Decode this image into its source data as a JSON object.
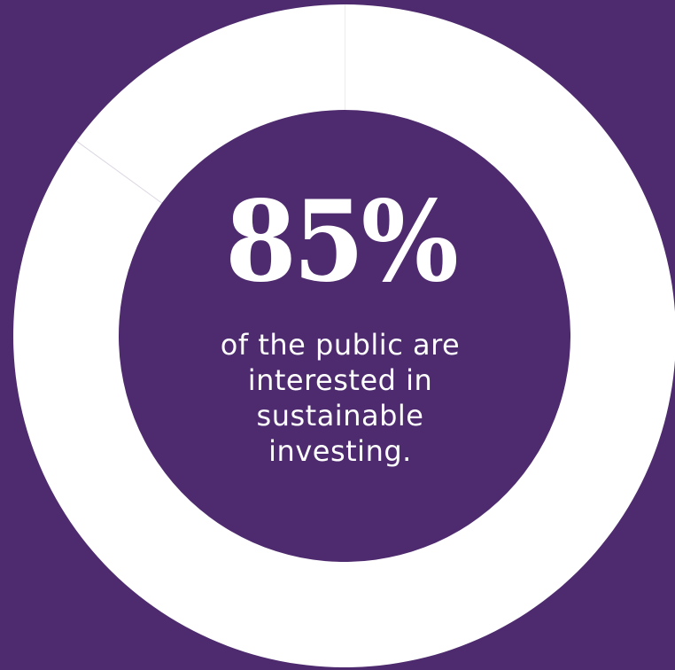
{
  "chart_data": {
    "type": "pie",
    "variant": "donut",
    "slices": [
      {
        "label": "",
        "value": 85
      },
      {
        "label": "",
        "value": 15
      }
    ],
    "center_value": "85%",
    "center_caption": "of the public are interested in sustainable investing."
  },
  "colors": {
    "background": "#4e2a6e",
    "ring": "#ffffff",
    "divider": "#dcd6e2",
    "text": "#ffffff"
  }
}
